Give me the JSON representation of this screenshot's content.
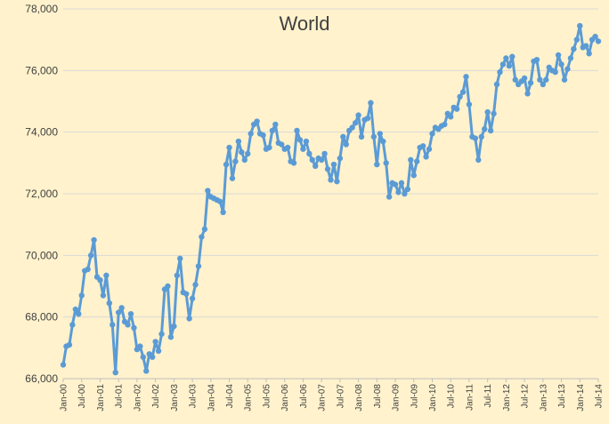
{
  "chart_data": {
    "type": "line",
    "title": "World",
    "xlabel": "",
    "ylabel": "",
    "ylim": [
      66000,
      78000
    ],
    "yticks": [
      66000,
      68000,
      70000,
      72000,
      74000,
      76000,
      78000
    ],
    "ytick_labels": [
      "66,000",
      "68,000",
      "70,000",
      "72,000",
      "74,000",
      "76,000",
      "78,000"
    ],
    "xtick_labels": [
      "Jan-00",
      "Jul-00",
      "Jan-01",
      "Jul-01",
      "Jan-02",
      "Jul-02",
      "Jan-03",
      "Jul-03",
      "Jan-04",
      "Jul-04",
      "Jan-05",
      "Jul-05",
      "Jan-06",
      "Jul-06",
      "Jan-07",
      "Jul-07",
      "Jan-08",
      "Jul-08",
      "Jan-09",
      "Jul-09",
      "Jan-10",
      "Jul-10",
      "Jan-11",
      "Jul-11",
      "Jan-12",
      "Jul-12",
      "Jan-13",
      "Jul-13",
      "Jan-14",
      "Jul-14"
    ],
    "grid": true,
    "legend": "none",
    "line_color": "#5B9BD5",
    "series": [
      {
        "name": "",
        "values": [
          66450,
          67050,
          67100,
          67750,
          68250,
          68100,
          68700,
          69500,
          69550,
          70000,
          70500,
          69300,
          69200,
          68700,
          69350,
          68450,
          67750,
          66200,
          68150,
          68300,
          67850,
          67750,
          68100,
          67650,
          66950,
          67050,
          66700,
          66250,
          66800,
          66700,
          67200,
          66900,
          67450,
          68900,
          69000,
          67350,
          67700,
          69350,
          69900,
          68800,
          68750,
          67950,
          68600,
          69050,
          69650,
          70600,
          70850,
          72100,
          71900,
          71850,
          71800,
          71750,
          71400,
          72950,
          73500,
          72500,
          73050,
          73700,
          73350,
          73100,
          73300,
          73950,
          74250,
          74350,
          73950,
          73900,
          73450,
          73500,
          74050,
          74250,
          73650,
          73600,
          73450,
          73500,
          73050,
          73000,
          74050,
          73750,
          73450,
          73700,
          73300,
          73100,
          72900,
          73150,
          73100,
          73300,
          72800,
          72450,
          72950,
          72400,
          73150,
          73850,
          73600,
          74050,
          74150,
          74300,
          74550,
          73850,
          74400,
          74450,
          74950,
          73850,
          72950,
          73950,
          73700,
          73000,
          71900,
          72350,
          72300,
          72050,
          72350,
          72000,
          72150,
          73100,
          72600,
          73050,
          73500,
          73550,
          73200,
          73450,
          73950,
          74150,
          74100,
          74200,
          74250,
          74600,
          74500,
          74800,
          74750,
          75150,
          75300,
          75800,
          74900,
          73850,
          73800,
          73100,
          73850,
          74100,
          74650,
          74050,
          74600,
          75550,
          75950,
          76200,
          76400,
          76150,
          76450,
          75700,
          75550,
          75650,
          75750,
          75250,
          75600,
          76300,
          76350,
          75700,
          75550,
          75700,
          76100,
          76000,
          75950,
          76500,
          76200,
          75700,
          76050,
          76400,
          76700,
          77000,
          77450,
          76750,
          76800,
          76550,
          77000,
          77100,
          76950
        ]
      }
    ]
  }
}
